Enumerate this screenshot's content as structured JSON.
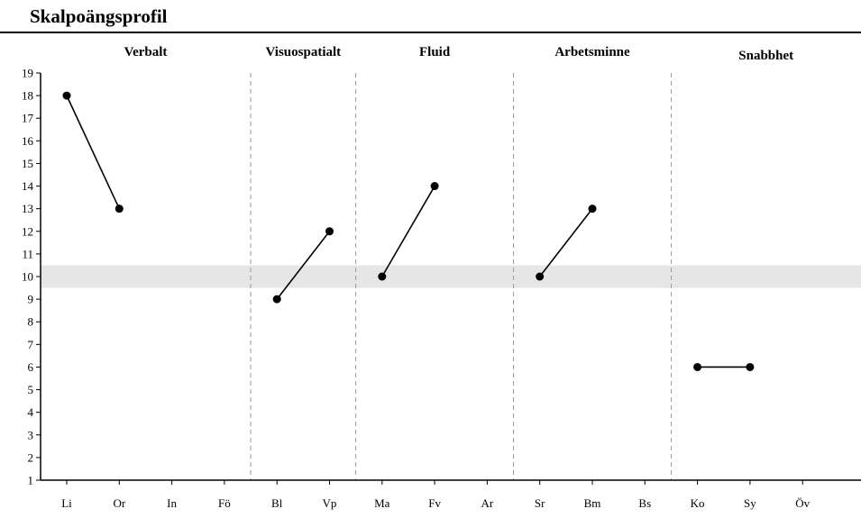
{
  "title": "Skalpoängsprofil",
  "chart_data": {
    "type": "line",
    "title": "Skalpoängsprofil",
    "xlabel": "",
    "ylabel": "",
    "ylim": [
      1,
      19
    ],
    "yticks": [
      1,
      2,
      3,
      4,
      5,
      6,
      7,
      8,
      9,
      10,
      11,
      12,
      13,
      14,
      15,
      16,
      17,
      18,
      19
    ],
    "categories": [
      "Li",
      "Or",
      "In",
      "Fö",
      "Bl",
      "Vp",
      "Ma",
      "Fv",
      "Ar",
      "Sr",
      "Bm",
      "Bs",
      "Ko",
      "Sy",
      "Öv"
    ],
    "reference_band": [
      9.5,
      10.5
    ],
    "groups": [
      {
        "name": "Verbalt",
        "categories": [
          "Li",
          "Or",
          "In",
          "Fö"
        ]
      },
      {
        "name": "Visuospatialt",
        "categories": [
          "Bl",
          "Vp"
        ]
      },
      {
        "name": "Fluid",
        "categories": [
          "Ma",
          "Fv",
          "Ar"
        ]
      },
      {
        "name": "Arbetsminne",
        "categories": [
          "Sr",
          "Bm",
          "Bs"
        ]
      },
      {
        "name": "Snabbhet",
        "categories": [
          "Ko",
          "Sy",
          "Öv"
        ]
      }
    ],
    "series": [
      {
        "group": "Verbalt",
        "points": [
          {
            "x": "Li",
            "y": 18
          },
          {
            "x": "Or",
            "y": 13
          }
        ]
      },
      {
        "group": "Visuospatialt",
        "points": [
          {
            "x": "Bl",
            "y": 9
          },
          {
            "x": "Vp",
            "y": 12
          }
        ]
      },
      {
        "group": "Fluid",
        "points": [
          {
            "x": "Ma",
            "y": 10
          },
          {
            "x": "Fv",
            "y": 14
          }
        ]
      },
      {
        "group": "Arbetsminne",
        "points": [
          {
            "x": "Sr",
            "y": 10
          },
          {
            "x": "Bm",
            "y": 13
          }
        ]
      },
      {
        "group": "Snabbhet",
        "points": [
          {
            "x": "Ko",
            "y": 6
          },
          {
            "x": "Sy",
            "y": 6
          }
        ]
      }
    ],
    "colors": {
      "line": "#000000",
      "marker": "#000000",
      "band": "#e6e6e6",
      "divider": "#9a9a9a"
    }
  }
}
